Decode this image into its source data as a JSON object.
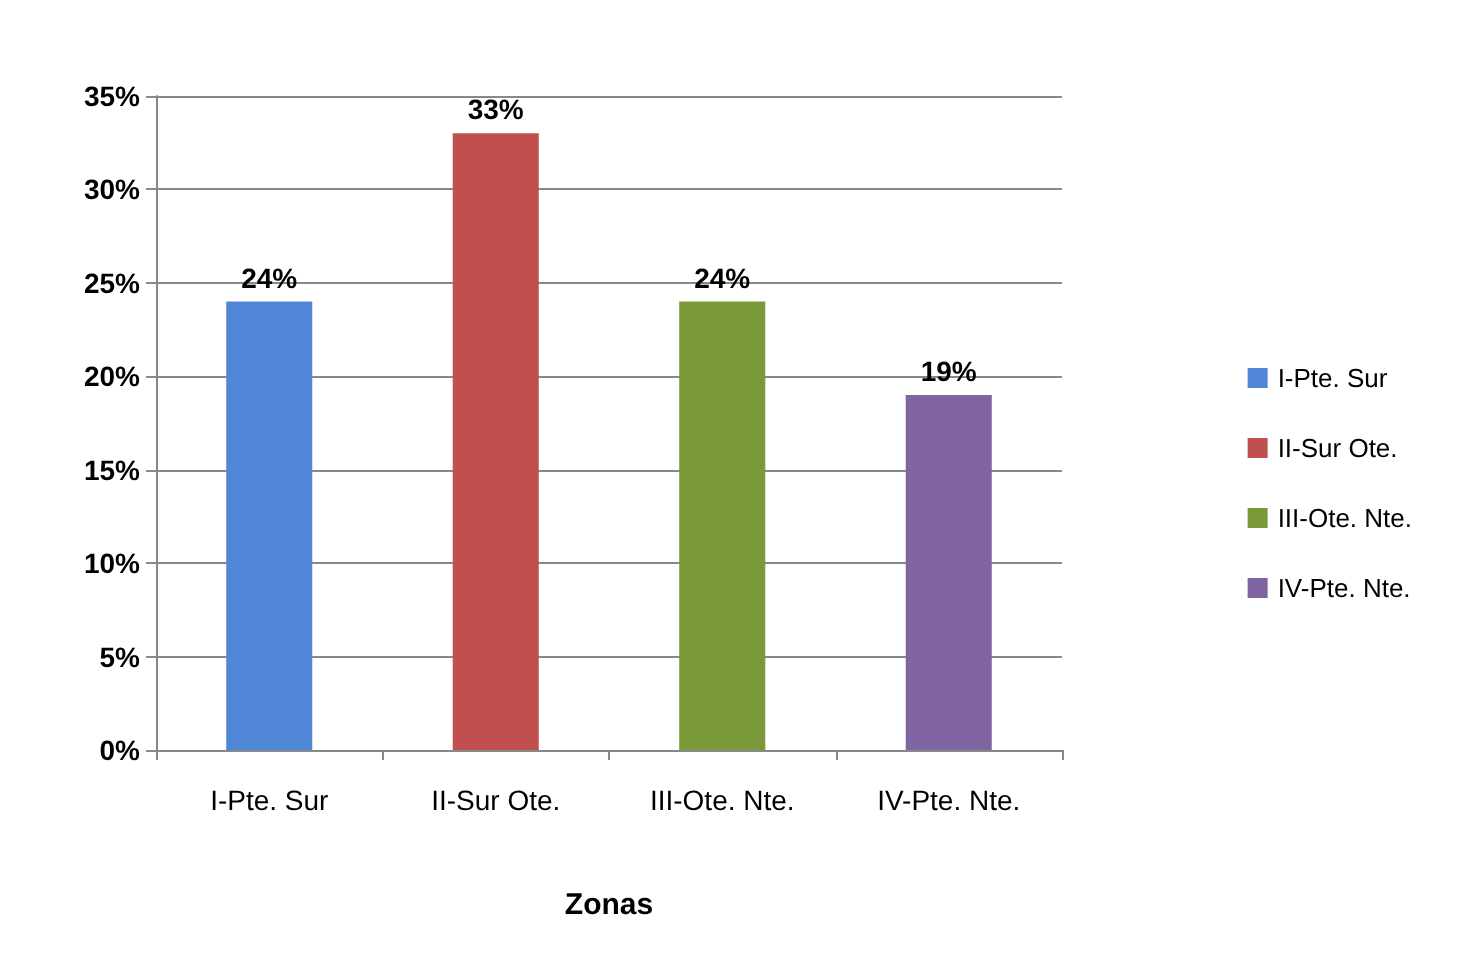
{
  "chart_data": {
    "type": "bar",
    "xlabel": "Zonas",
    "categories": [
      "I-Pte. Sur",
      "II-Sur Ote.",
      "III-Ote. Nte.",
      "IV-Pte. Nte."
    ],
    "series": [
      {
        "name": "I-Pte. Sur",
        "color": "#4f86d6",
        "values": [
          24,
          null,
          null,
          null
        ],
        "value_labels": [
          "24%",
          null,
          null,
          null
        ]
      },
      {
        "name": "II-Sur Ote.",
        "color": "#c0504d",
        "values": [
          null,
          33,
          null,
          null
        ],
        "value_labels": [
          null,
          "33%",
          null,
          null
        ]
      },
      {
        "name": "III-Ote. Nte.",
        "color": "#7a9a3a",
        "values": [
          null,
          null,
          24,
          null
        ],
        "value_labels": [
          null,
          null,
          "24%",
          null
        ]
      },
      {
        "name": "IV-Pte. Nte.",
        "color": "#8064a2",
        "values": [
          null,
          null,
          null,
          19
        ],
        "value_labels": [
          null,
          null,
          null,
          "19%"
        ]
      }
    ],
    "ylim": [
      0,
      35
    ],
    "yticks": [
      {
        "value": 0,
        "label": "0%"
      },
      {
        "value": 5,
        "label": "5%"
      },
      {
        "value": 10,
        "label": "10%"
      },
      {
        "value": 15,
        "label": "15%"
      },
      {
        "value": 20,
        "label": "20%"
      },
      {
        "value": 25,
        "label": "25%"
      },
      {
        "value": 30,
        "label": "30%"
      },
      {
        "value": 35,
        "label": "35%"
      }
    ],
    "grid": "y",
    "legend": "right"
  }
}
